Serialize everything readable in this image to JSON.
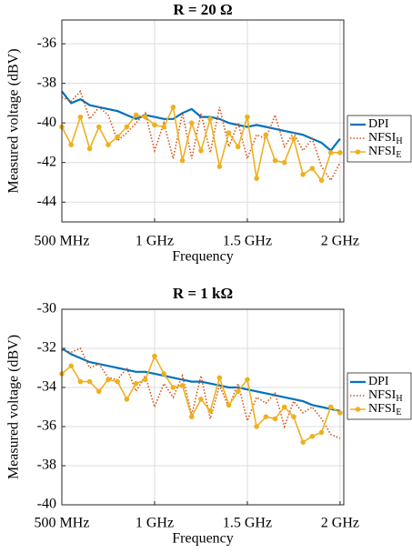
{
  "chart_data": [
    {
      "type": "line",
      "title": "R = 20 Ω",
      "x_label": "Frequency",
      "y_label": "Measured voltage (dBV)",
      "x": [
        0.5,
        0.55,
        0.6,
        0.65,
        0.7,
        0.75,
        0.8,
        0.85,
        0.9,
        0.95,
        1.0,
        1.05,
        1.1,
        1.15,
        1.2,
        1.25,
        1.3,
        1.35,
        1.4,
        1.45,
        1.5,
        1.55,
        1.6,
        1.65,
        1.7,
        1.75,
        1.8,
        1.85,
        1.9,
        1.95,
        2.0
      ],
      "xlim": [
        0.5,
        2.02
      ],
      "xticks": [
        {
          "value": 0.5,
          "label": "500 MHz"
        },
        {
          "value": 1,
          "label": "1 GHz"
        },
        {
          "value": 1.5,
          "label": "1.5 GHz"
        },
        {
          "value": 2,
          "label": "2 GHz"
        }
      ],
      "ylim": [
        -45,
        -34.8
      ],
      "yticks": [
        -44,
        -42,
        -40,
        -38,
        -36
      ],
      "grid": true,
      "legend": "right",
      "series": [
        {
          "name": "DPI",
          "color": "#0072bd",
          "style": "solid",
          "values": [
            -38.4,
            -39.0,
            -38.8,
            -39.1,
            -39.2,
            -39.3,
            -39.4,
            -39.6,
            -39.8,
            -39.6,
            -39.7,
            -39.8,
            -39.8,
            -39.5,
            -39.3,
            -39.7,
            -39.7,
            -39.8,
            -40.0,
            -40.1,
            -40.2,
            -40.1,
            -40.2,
            -40.3,
            -40.4,
            -40.5,
            -40.6,
            -40.8,
            -41.0,
            -41.4,
            -40.8
          ]
        },
        {
          "name": "NFSI",
          "name_subscript": "H",
          "color": "#d95319",
          "style": "dotted",
          "values": [
            -38.7,
            -38.9,
            -38.4,
            -39.8,
            -39.2,
            -39.6,
            -40.9,
            -40.5,
            -40.0,
            -39.5,
            -41.4,
            -40.0,
            -41.8,
            -39.5,
            -41.8,
            -39.5,
            -41.5,
            -39.2,
            -41.2,
            -40.0,
            -41.8,
            -40.6,
            -40.8,
            -39.6,
            -41.2,
            -40.5,
            -41.4,
            -40.8,
            -42.2,
            -42.9,
            -42.0
          ]
        },
        {
          "name": "NFSI",
          "name_subscript": "E",
          "color": "#edb120",
          "style": "marker",
          "values": [
            -40.2,
            -41.1,
            -39.7,
            -41.3,
            -40.2,
            -41.1,
            -40.7,
            -40.2,
            -39.6,
            -39.7,
            -40.1,
            -40.2,
            -39.2,
            -41.9,
            -40.0,
            -41.4,
            -39.8,
            -42.2,
            -40.5,
            -41.2,
            -39.7,
            -42.8,
            -40.6,
            -41.9,
            -42.0,
            -40.8,
            -42.6,
            -42.3,
            -42.9,
            -41.5,
            -41.5
          ]
        }
      ]
    },
    {
      "type": "line",
      "title": "R = 1 kΩ",
      "x_label": "Frequency",
      "y_label": "Measured voltage (dBV)",
      "x": [
        0.5,
        0.55,
        0.6,
        0.65,
        0.7,
        0.75,
        0.8,
        0.85,
        0.9,
        0.95,
        1.0,
        1.05,
        1.1,
        1.15,
        1.2,
        1.25,
        1.3,
        1.35,
        1.4,
        1.45,
        1.5,
        1.55,
        1.6,
        1.65,
        1.7,
        1.75,
        1.8,
        1.85,
        1.9,
        1.95,
        2.0
      ],
      "xlim": [
        0.5,
        2.02
      ],
      "xticks": [
        {
          "value": 0.5,
          "label": "500 MHz"
        },
        {
          "value": 1,
          "label": "1 GHz"
        },
        {
          "value": 1.5,
          "label": "1.5 GHz"
        },
        {
          "value": 2,
          "label": "2 GHz"
        }
      ],
      "ylim": [
        -40,
        -30
      ],
      "yticks": [
        -40,
        -38,
        -36,
        -34,
        -32,
        -30
      ],
      "grid": true,
      "legend": "right",
      "series": [
        {
          "name": "DPI",
          "color": "#0072bd",
          "style": "solid",
          "values": [
            -32.0,
            -32.3,
            -32.5,
            -32.7,
            -32.8,
            -32.9,
            -33.0,
            -33.1,
            -33.2,
            -33.2,
            -33.3,
            -33.4,
            -33.5,
            -33.6,
            -33.7,
            -33.7,
            -33.8,
            -33.9,
            -34.0,
            -34.0,
            -34.1,
            -34.2,
            -34.3,
            -34.4,
            -34.5,
            -34.6,
            -34.7,
            -34.9,
            -35.0,
            -35.1,
            -35.2
          ]
        },
        {
          "name": "NFSI",
          "name_subscript": "H",
          "color": "#d95319",
          "style": "dotted",
          "values": [
            -32.1,
            -32.2,
            -32.0,
            -33.0,
            -32.8,
            -33.5,
            -33.6,
            -33.0,
            -34.2,
            -33.4,
            -35.0,
            -33.8,
            -34.5,
            -33.4,
            -35.4,
            -33.4,
            -35.6,
            -33.9,
            -35.0,
            -33.8,
            -35.7,
            -34.5,
            -34.8,
            -34.3,
            -36.0,
            -34.7,
            -35.3,
            -35.0,
            -35.6,
            -36.4,
            -36.6
          ]
        },
        {
          "name": "NFSI",
          "name_subscript": "E",
          "color": "#edb120",
          "style": "marker",
          "values": [
            -33.3,
            -32.9,
            -33.7,
            -33.7,
            -34.2,
            -33.6,
            -33.7,
            -34.6,
            -33.8,
            -33.6,
            -32.4,
            -33.3,
            -34.0,
            -33.9,
            -35.5,
            -34.6,
            -35.2,
            -33.5,
            -34.9,
            -34.2,
            -33.6,
            -36.0,
            -35.5,
            -35.6,
            -35.0,
            -35.5,
            -36.8,
            -36.5,
            -36.3,
            -35.0,
            -35.3
          ]
        }
      ]
    }
  ]
}
